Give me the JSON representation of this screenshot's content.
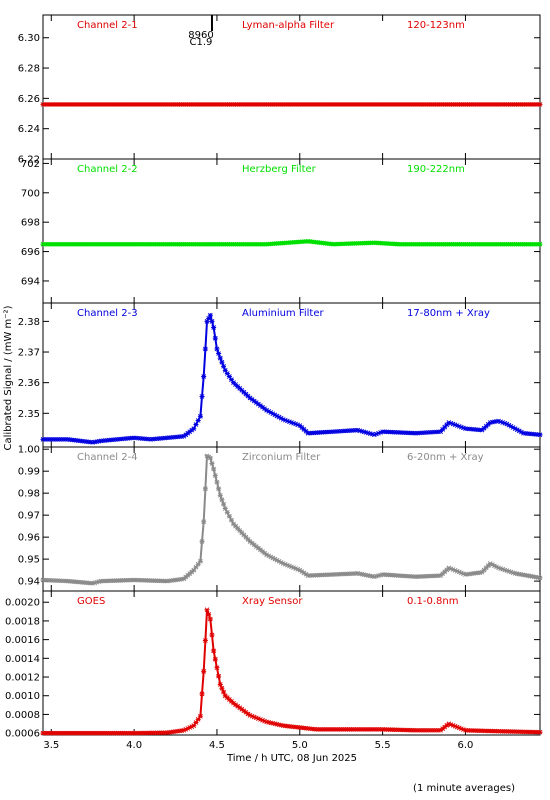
{
  "chart_data": {
    "type": "scatter",
    "xlabel": "Time / h UTC, 08 Jun 2025",
    "ylabel": "Calibrated Signal / (mW m⁻²)",
    "footnote": "(1 minute averages)",
    "xlim": [
      3.45,
      6.45
    ],
    "xticks": [
      "3.5",
      "4.0",
      "4.5",
      "5.0",
      "5.5",
      "6.0"
    ],
    "xtick_values": [
      3.5,
      4.0,
      4.5,
      5.0,
      5.5,
      6.0
    ],
    "event": {
      "time": 4.47,
      "labels": [
        "8960",
        "C1.9"
      ]
    },
    "panels": [
      {
        "channel": "Channel 2-1",
        "filter": "Lyman-alpha Filter",
        "band": "120-123nm",
        "color": "#e00000",
        "ylim": [
          6.22,
          6.315
        ],
        "yticks": [
          "6.22",
          "6.24",
          "6.26",
          "6.28",
          "6.30"
        ],
        "ytick_values": [
          6.22,
          6.24,
          6.26,
          6.28,
          6.3
        ],
        "series": {
          "x": [
            3.45,
            3.8,
            4.2,
            4.47,
            4.8,
            5.2,
            5.6,
            6.0,
            6.45
          ],
          "y": [
            6.256,
            6.256,
            6.256,
            6.256,
            6.256,
            6.256,
            6.256,
            6.256,
            6.256
          ]
        }
      },
      {
        "channel": "Channel 2-2",
        "filter": "Herzberg Filter",
        "band": "190-222nm",
        "color": "#00e000",
        "ylim": [
          692.5,
          702.3
        ],
        "yticks": [
          "694",
          "696",
          "698",
          "700",
          "702"
        ],
        "ytick_values": [
          694,
          696,
          698,
          700,
          702
        ],
        "series": {
          "x": [
            3.45,
            3.8,
            4.2,
            4.47,
            4.8,
            5.05,
            5.2,
            5.45,
            5.6,
            6.0,
            6.45
          ],
          "y": [
            696.5,
            696.5,
            696.5,
            696.5,
            696.5,
            696.7,
            696.5,
            696.6,
            696.5,
            696.5,
            696.5
          ]
        }
      },
      {
        "channel": "Channel 2-3",
        "filter": "Aluminium Filter",
        "band": "17-80nm + Xray",
        "color": "#0000e0",
        "ylim": [
          2.339,
          2.386
        ],
        "yticks": [
          "2.35",
          "2.36",
          "2.37",
          "2.38"
        ],
        "ytick_values": [
          2.35,
          2.36,
          2.37,
          2.38
        ],
        "series": {
          "x": [
            3.45,
            3.6,
            3.75,
            3.8,
            3.9,
            4.0,
            4.1,
            4.2,
            4.3,
            4.36,
            4.4,
            4.42,
            4.44,
            4.46,
            4.48,
            4.5,
            4.52,
            4.55,
            4.6,
            4.7,
            4.8,
            4.9,
            5.0,
            5.05,
            5.2,
            5.35,
            5.45,
            5.5,
            5.7,
            5.85,
            5.9,
            6.0,
            6.1,
            6.15,
            6.2,
            6.25,
            6.35,
            6.45
          ],
          "y": [
            2.3415,
            2.3415,
            2.3405,
            2.341,
            2.3415,
            2.342,
            2.3415,
            2.342,
            2.3425,
            2.345,
            2.349,
            2.362,
            2.38,
            2.382,
            2.378,
            2.371,
            2.368,
            2.364,
            2.36,
            2.355,
            2.351,
            2.348,
            2.346,
            2.3435,
            2.344,
            2.3445,
            2.343,
            2.344,
            2.3435,
            2.344,
            2.347,
            2.345,
            2.3445,
            2.347,
            2.3475,
            2.3465,
            2.3435,
            2.343
          ]
        }
      },
      {
        "channel": "Channel 2-4",
        "filter": "Zirconium Filter",
        "band": "6-20nm + Xray",
        "color": "#8a8a8a",
        "ylim": [
          0.9355,
          1.001
        ],
        "yticks": [
          "0.94",
          "0.95",
          "0.96",
          "0.97",
          "0.98",
          "0.99",
          "1.00"
        ],
        "ytick_values": [
          0.94,
          0.95,
          0.96,
          0.97,
          0.98,
          0.99,
          1.0
        ],
        "series": {
          "x": [
            3.45,
            3.6,
            3.75,
            3.8,
            4.0,
            4.2,
            4.3,
            4.36,
            4.4,
            4.42,
            4.44,
            4.46,
            4.48,
            4.5,
            4.52,
            4.55,
            4.6,
            4.7,
            4.8,
            4.9,
            5.0,
            5.05,
            5.2,
            5.35,
            5.45,
            5.5,
            5.7,
            5.85,
            5.9,
            6.0,
            6.1,
            6.15,
            6.2,
            6.3,
            6.45
          ],
          "y": [
            0.9405,
            0.94,
            0.939,
            0.94,
            0.9405,
            0.94,
            0.941,
            0.945,
            0.949,
            0.967,
            0.997,
            0.996,
            0.991,
            0.985,
            0.979,
            0.973,
            0.966,
            0.958,
            0.952,
            0.948,
            0.945,
            0.9425,
            0.943,
            0.9435,
            0.942,
            0.943,
            0.942,
            0.9425,
            0.946,
            0.943,
            0.944,
            0.948,
            0.946,
            0.9435,
            0.9415
          ]
        }
      },
      {
        "channel": "GOES",
        "filter": "Xray Sensor",
        "band": "0.1-0.8nm",
        "color": "#e00000",
        "ylim": [
          0.00058,
          0.00212
        ],
        "yticks": [
          "0.0006",
          "0.0008",
          "0.0010",
          "0.0012",
          "0.0014",
          "0.0016",
          "0.0018",
          "0.0020"
        ],
        "ytick_values": [
          0.0006,
          0.0008,
          0.001,
          0.0012,
          0.0014,
          0.0016,
          0.0018,
          0.002
        ],
        "series": {
          "x": [
            3.45,
            3.8,
            4.0,
            4.2,
            4.3,
            4.36,
            4.4,
            4.42,
            4.44,
            4.46,
            4.48,
            4.5,
            4.52,
            4.55,
            4.6,
            4.7,
            4.8,
            4.9,
            5.0,
            5.1,
            5.3,
            5.5,
            5.7,
            5.85,
            5.9,
            6.0,
            6.2,
            6.45
          ],
          "y": [
            0.0006,
            0.0006,
            0.0006,
            0.000605,
            0.00063,
            0.00068,
            0.00078,
            0.00126,
            0.00192,
            0.00182,
            0.00148,
            0.0013,
            0.00112,
            0.001,
            0.00092,
            0.00079,
            0.00072,
            0.00068,
            0.00066,
            0.00064,
            0.00064,
            0.00064,
            0.00063,
            0.00063,
            0.0007,
            0.00063,
            0.00062,
            0.00061
          ]
        }
      }
    ]
  }
}
